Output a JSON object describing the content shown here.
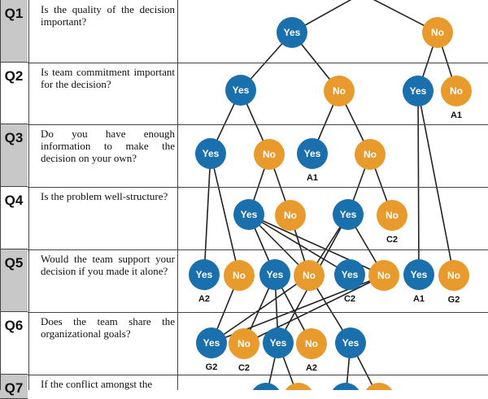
{
  "questions": [
    {
      "id": "Q1",
      "text": "Is the quality of the decision important?"
    },
    {
      "id": "Q2",
      "text": "Is team commitment important for the decision?"
    },
    {
      "id": "Q3",
      "text": "Do you have enough information to make the decision on your own?"
    },
    {
      "id": "Q4",
      "text": "Is the problem well-structure?"
    },
    {
      "id": "Q5",
      "text": "Would the team support your decision if you made it alone?"
    },
    {
      "id": "Q6",
      "text": "Does the team share the organizational goals?"
    },
    {
      "id": "Q7",
      "text": "If the conflict amongst the"
    }
  ],
  "colors": {
    "yes": "#1a6fad",
    "no": "#e89a2c",
    "line": "#222222"
  },
  "tree": {
    "nodes": [
      {
        "id": "q1y",
        "label": "Yes",
        "type": "yes"
      },
      {
        "id": "q1n",
        "label": "No",
        "type": "no"
      },
      {
        "id": "q2a",
        "label": "Yes",
        "type": "yes"
      },
      {
        "id": "q2b",
        "label": "No",
        "type": "no"
      },
      {
        "id": "q2c",
        "label": "Yes",
        "type": "yes"
      },
      {
        "id": "q2d",
        "label": "No",
        "type": "no",
        "outcome": "A1"
      },
      {
        "id": "q3a",
        "label": "Yes",
        "type": "yes"
      },
      {
        "id": "q3b",
        "label": "No",
        "type": "no"
      },
      {
        "id": "q3c",
        "label": "Yes",
        "type": "yes",
        "outcome": "A1"
      },
      {
        "id": "q3d",
        "label": "No",
        "type": "no"
      },
      {
        "id": "q4a",
        "label": "Yes",
        "type": "yes"
      },
      {
        "id": "q4b",
        "label": "No",
        "type": "no"
      },
      {
        "id": "q4c",
        "label": "Yes",
        "type": "yes"
      },
      {
        "id": "q4d",
        "label": "No",
        "type": "no",
        "outcome": "C2"
      },
      {
        "id": "q5a",
        "label": "Yes",
        "type": "yes",
        "outcome": "A2"
      },
      {
        "id": "q5b",
        "label": "No",
        "type": "no"
      },
      {
        "id": "q5c",
        "label": "Yes",
        "type": "yes"
      },
      {
        "id": "q5d",
        "label": "No",
        "type": "no"
      },
      {
        "id": "q5e",
        "label": "Yes",
        "type": "yes",
        "outcome": "C2"
      },
      {
        "id": "q5f",
        "label": "No",
        "type": "no"
      },
      {
        "id": "q5g",
        "label": "Yes",
        "type": "yes",
        "outcome": "A1"
      },
      {
        "id": "q5h",
        "label": "No",
        "type": "no",
        "outcome": "G2"
      },
      {
        "id": "q6a",
        "label": "Yes",
        "type": "yes",
        "outcome": "G2"
      },
      {
        "id": "q6b",
        "label": "No",
        "type": "no",
        "outcome": "C2"
      },
      {
        "id": "q6c",
        "label": "Yes",
        "type": "yes"
      },
      {
        "id": "q6d",
        "label": "No",
        "type": "no",
        "outcome": "A2"
      },
      {
        "id": "q6e",
        "label": "Yes",
        "type": "yes"
      },
      {
        "id": "q7a",
        "label": "",
        "type": "yes"
      },
      {
        "id": "q7b",
        "label": "",
        "type": "no"
      },
      {
        "id": "q7c",
        "label": "",
        "type": "yes"
      },
      {
        "id": "q7d",
        "label": "",
        "type": "no"
      }
    ],
    "edges": [
      [
        "top",
        "q1y"
      ],
      [
        "top",
        "q1n"
      ],
      [
        "q1y",
        "q2a"
      ],
      [
        "q1y",
        "q2b"
      ],
      [
        "q1n",
        "q2c"
      ],
      [
        "q1n",
        "q2d"
      ],
      [
        "q2a",
        "q3a"
      ],
      [
        "q2a",
        "q3b"
      ],
      [
        "q2b",
        "q3c"
      ],
      [
        "q2b",
        "q3d"
      ],
      [
        "q2c",
        "q5g"
      ],
      [
        "q2c",
        "q5h"
      ],
      [
        "q3a",
        "q5a"
      ],
      [
        "q3a",
        "q5b"
      ],
      [
        "q3b",
        "q4a"
      ],
      [
        "q3b",
        "q4b"
      ],
      [
        "q3d",
        "q4c"
      ],
      [
        "q3d",
        "q4d"
      ],
      [
        "q4a",
        "q5c"
      ],
      [
        "q4a",
        "q5d"
      ],
      [
        "q4a",
        "q5e"
      ],
      [
        "q4a",
        "q5f"
      ],
      [
        "q4b",
        "q5d"
      ],
      [
        "q4c",
        "q5d"
      ],
      [
        "q4c",
        "q6c"
      ],
      [
        "q4c",
        "q5f"
      ],
      [
        "q5b",
        "q6a"
      ],
      [
        "q5c",
        "q6b"
      ],
      [
        "q5c",
        "q6c"
      ],
      [
        "q5c",
        "q6d"
      ],
      [
        "q5d",
        "q6a"
      ],
      [
        "q5d",
        "q6e"
      ],
      [
        "q5f",
        "q6b"
      ],
      [
        "q5f",
        "q6a"
      ],
      [
        "q6c",
        "q7a"
      ],
      [
        "q6c",
        "q7b"
      ],
      [
        "q6e",
        "q7c"
      ],
      [
        "q6e",
        "q7d"
      ]
    ]
  }
}
